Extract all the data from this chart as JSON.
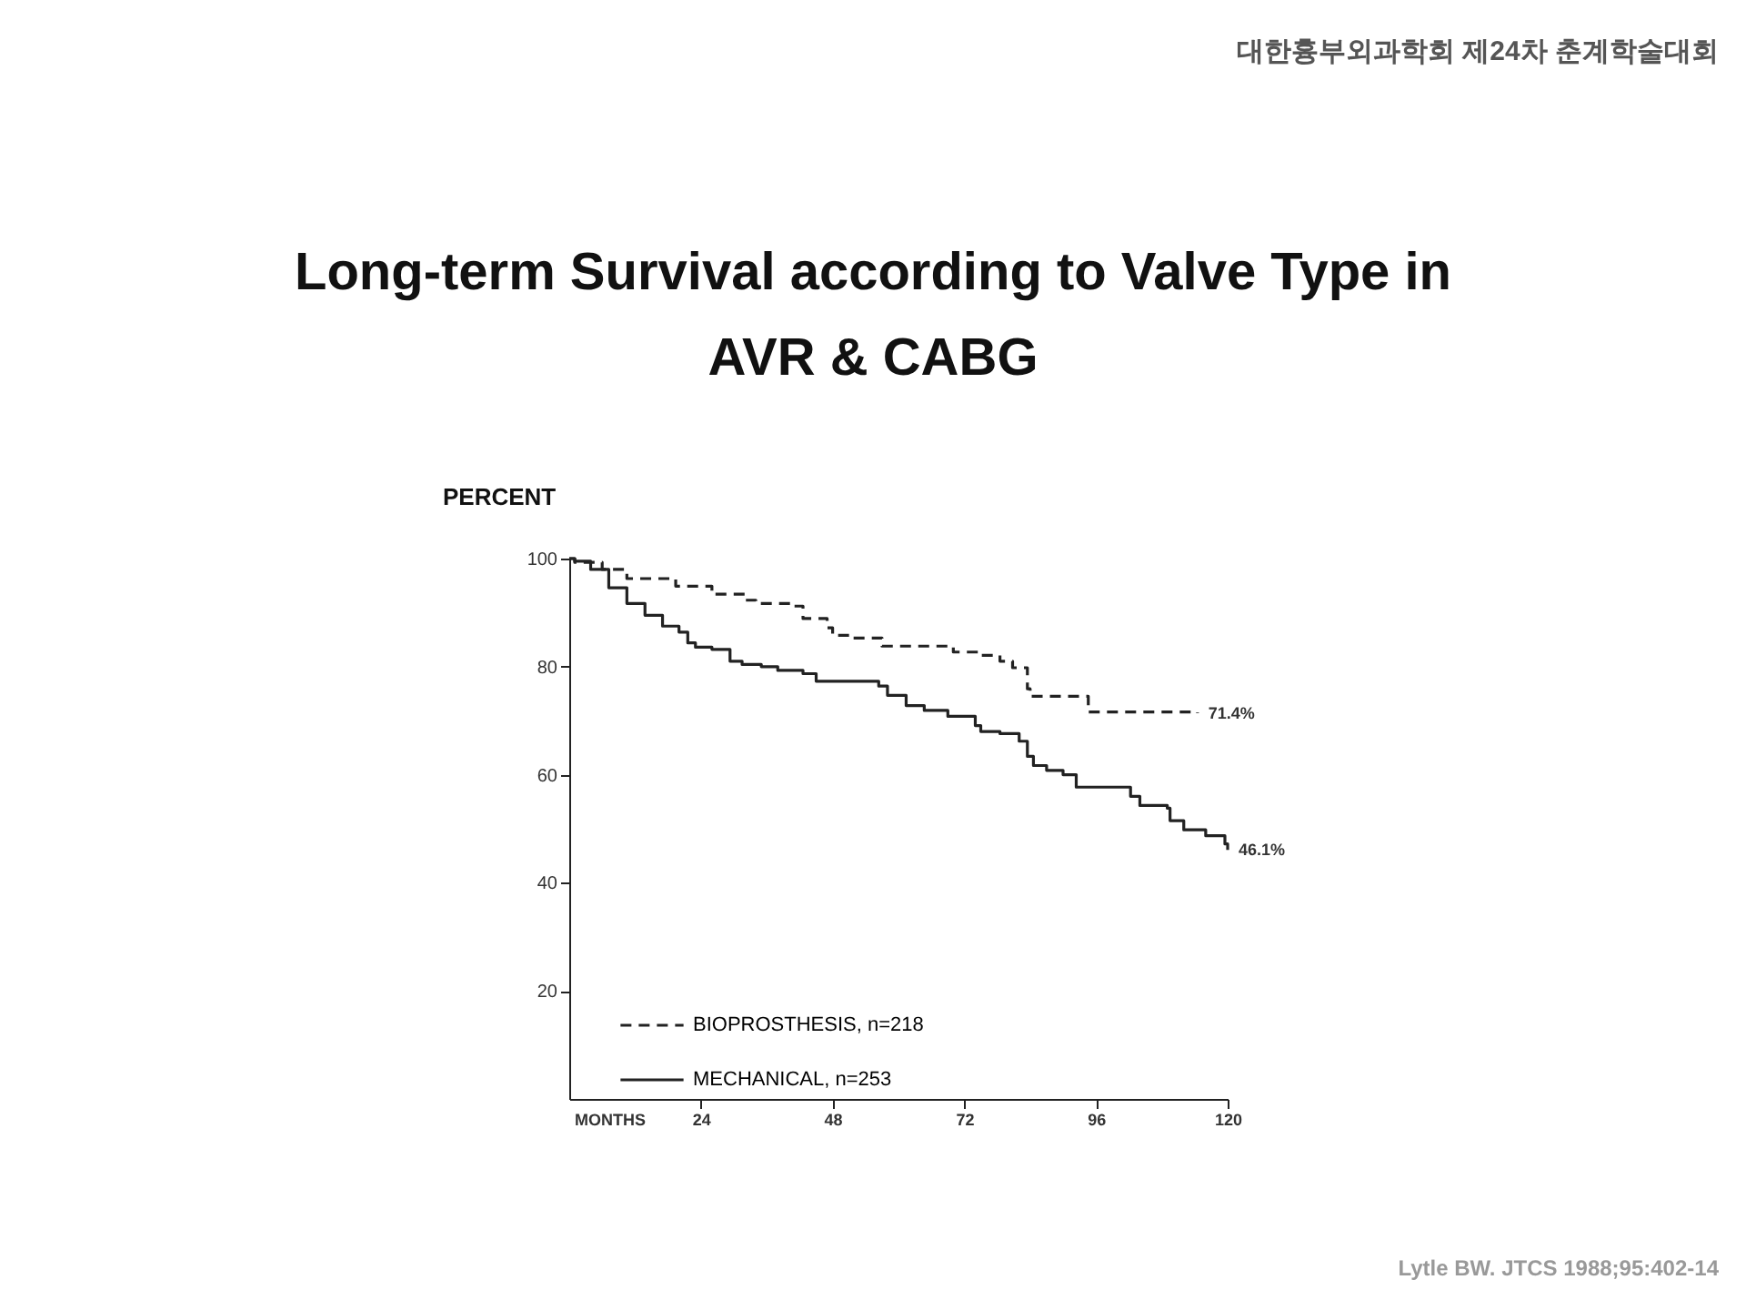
{
  "chart_data": {
    "type": "step",
    "title": "Long-term Survival according to Valve Type in AVR & CABG",
    "xlabel": "MONTHS",
    "ylabel": "PERCENT",
    "xlim": [
      0,
      120
    ],
    "xticks": [
      24,
      48,
      72,
      96,
      120
    ],
    "ylim": [
      0,
      100
    ],
    "yticks": [
      20,
      40,
      60,
      80,
      100
    ],
    "grid": false,
    "legend": "bottom left",
    "series": [
      {
        "name": "BIOPROSTHESIS, n=218",
        "color": "#222222",
        "line_style": "dashed",
        "x": [
          0,
          1,
          6,
          10.5,
          19.4,
          26,
          32,
          34,
          41,
          42.6,
          47,
          48,
          51.4,
          57,
          69,
          70,
          75,
          78.5,
          80.8,
          83.5,
          84,
          94,
          94.6,
          114.5
        ],
        "values": [
          100,
          99.3,
          98,
          96.3,
          94.9,
          93.4,
          92.3,
          91.7,
          91.2,
          88.9,
          87.2,
          85.8,
          85.3,
          83.8,
          83.8,
          82.7,
          82.1,
          81,
          79.8,
          75.9,
          74.5,
          74.5,
          71.6,
          71.4
        ]
      },
      {
        "name": "MECHANICAL, n=253",
        "color": "#222222",
        "line_style": "solid",
        "x": [
          0,
          1,
          3.9,
          7.2,
          10.5,
          13.8,
          17,
          20,
          21.6,
          23,
          26,
          29.3,
          31.5,
          35,
          38,
          42.6,
          45,
          52.5,
          56.4,
          58,
          61.4,
          64.7,
          69,
          74,
          75,
          78.5,
          82,
          83.5,
          84.6,
          87,
          90,
          92.4,
          99.6,
          102.3,
          104,
          109,
          109.5,
          112,
          116,
          119.5,
          120
        ],
        "values": [
          100,
          99.5,
          98,
          94.6,
          91.7,
          89.5,
          87.5,
          86.4,
          84.4,
          83.6,
          83.2,
          81,
          80.4,
          80,
          79.3,
          78.7,
          77.3,
          77.3,
          76.4,
          74.7,
          72.8,
          71.9,
          70.8,
          69.1,
          68,
          67.6,
          66.2,
          63.4,
          61.7,
          60.8,
          60,
          57.7,
          57.7,
          56,
          54.3,
          53.8,
          51.5,
          49.8,
          48.7,
          47.2,
          46.1
        ]
      }
    ],
    "annotations": [
      {
        "text": "71.4%",
        "x": 114.5,
        "y": 71.4
      },
      {
        "text": "46.1%",
        "x": 120,
        "y": 46.1
      },
      "대한흉부외과학회 제24차 춘계학술대회",
      "Lytle BW. JTCS 1988;95:402-14"
    ]
  }
}
